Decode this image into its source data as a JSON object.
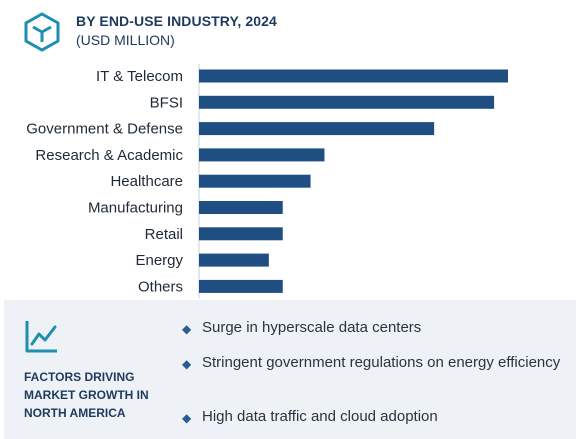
{
  "header": {
    "title": "BY END-USE INDUSTRY, 2024",
    "subtitle": "(USD MILLION)",
    "logo_icon": "cube-logo-icon"
  },
  "chart_data": {
    "type": "bar",
    "orientation": "horizontal",
    "categories": [
      "IT & Telecom",
      "BFSI",
      "Government & Defense",
      "Research & Academic",
      "Healthcare",
      "Manufacturing",
      "Retail",
      "Energy",
      "Others"
    ],
    "values": [
      100,
      95.5,
      76.1,
      40.6,
      36.1,
      27.1,
      27.1,
      22.6,
      27.1
    ],
    "title": "BY END-USE INDUSTRY, 2024",
    "xlabel": "",
    "ylabel": "",
    "xlim": [
      0,
      100
    ],
    "grid": false,
    "legend": "none",
    "bar_color": "#1f4f82"
  },
  "factors": {
    "icon": "line-chart-icon",
    "title": "FACTORS DRIVING MARKET GROWTH IN NORTH AMERICA",
    "items": [
      "Surge in hyperscale data centers",
      "Stringent government regulations on energy efficiency",
      "High data traffic and cloud adoption"
    ]
  },
  "colors": {
    "accent": "#1e3a5c",
    "bar": "#1f4f82",
    "panel": "#eef2f7",
    "icon": "#1e8fb0"
  }
}
